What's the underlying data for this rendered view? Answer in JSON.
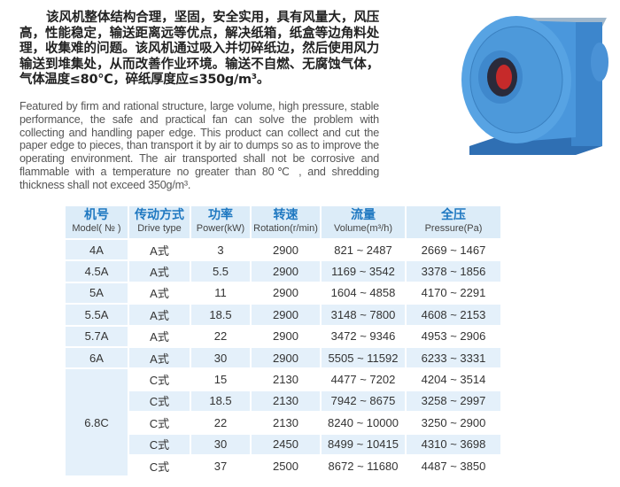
{
  "intro_cn": "该风机整体结构合理，坚固，安全实用，具有风量大，风压高，性能稳定，输送距离远等优点，解决纸箱，纸盒等边角料处理，收集难的问题。该风机通过吸入并切碎纸边，然后使用风力输送到堆集处，从而改善作业环境。输送不自燃、无腐蚀气体，气体温度≤80℃，碎纸厚度应≤350g/m³。",
  "intro_en": "Featured by firm and rational structure, large volume, high pressure, stable performance, the safe and practical fan can solve the problem with collecting and handling paper edge. This product can collect and cut the paper edge to pieces, than transport it by air to dumps so as to improve the operating environment. The air transported shall not be corrosive and flammable with a temperature no greater than 80℃ , and shredding thickness shall not exceed 350g/m³.",
  "image": "centrifugal-fan-photo",
  "colors": {
    "header_bg": "#dcecf8",
    "header_text": "#1f78c1",
    "stripe": "#e4f0fa"
  },
  "table": {
    "headers": [
      {
        "zh": "机号",
        "en": "Model( № )"
      },
      {
        "zh": "传动方式",
        "en": "Drive type"
      },
      {
        "zh": "功率",
        "en": "Power(kW)"
      },
      {
        "zh": "转速",
        "en": "Rotation(r/min)"
      },
      {
        "zh": "流量",
        "en": "Volume(m³/h)"
      },
      {
        "zh": "全压",
        "en": "Pressure(Pa)"
      }
    ],
    "rows": [
      [
        "4A",
        "A式",
        "3",
        "2900",
        "821 ~ 2487",
        "2669 ~ 1467"
      ],
      [
        "4.5A",
        "A式",
        "5.5",
        "2900",
        "1169 ~ 3542",
        "3378 ~ 1856"
      ],
      [
        "5A",
        "A式",
        "11",
        "2900",
        "1604 ~ 4858",
        "4170 ~ 2291"
      ],
      [
        "5.5A",
        "A式",
        "18.5",
        "2900",
        "3148 ~ 7800",
        "4608 ~ 2153"
      ],
      [
        "5.7A",
        "A式",
        "22",
        "2900",
        "3472 ~ 9346",
        "4953 ~ 2906"
      ],
      [
        "6A",
        "A式",
        "30",
        "2900",
        "5505 ~ 11592",
        "6233 ~ 3331"
      ],
      [
        "6.8C",
        "C式",
        "15",
        "2130",
        "4477 ~ 7202",
        "4204 ~ 3514"
      ],
      [
        "",
        "C式",
        "18.5",
        "2130",
        "7942 ~ 8675",
        "3258 ~ 2997"
      ],
      [
        "",
        "C式",
        "22",
        "2130",
        "8240 ~ 10000",
        "3250 ~ 2900"
      ],
      [
        "",
        "C式",
        "30",
        "2450",
        "8499 ~ 10415",
        "4310 ~ 3698"
      ],
      [
        "",
        "C式",
        "37",
        "2500",
        "8672 ~ 11680",
        "4487 ~ 3850"
      ]
    ]
  }
}
